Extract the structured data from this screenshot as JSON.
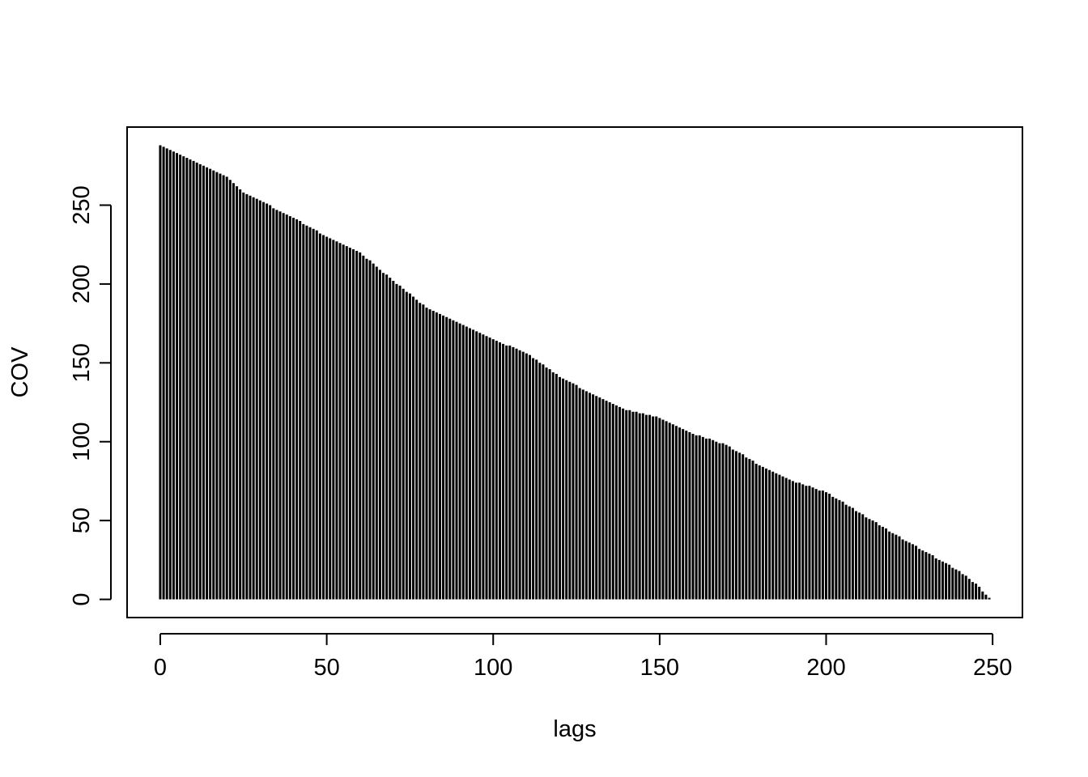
{
  "chart_data": {
    "type": "spike",
    "x_label": "lags",
    "y_label": "COV",
    "color": "#000000",
    "x": [
      0,
      1,
      2,
      3,
      4,
      5,
      6,
      7,
      8,
      9,
      10,
      11,
      12,
      13,
      14,
      15,
      16,
      17,
      18,
      19,
      20,
      21,
      22,
      23,
      24,
      25,
      26,
      27,
      28,
      29,
      30,
      31,
      32,
      33,
      34,
      35,
      36,
      37,
      38,
      39,
      40,
      41,
      42,
      43,
      44,
      45,
      46,
      47,
      48,
      49,
      50,
      51,
      52,
      53,
      54,
      55,
      56,
      57,
      58,
      59,
      60,
      61,
      62,
      63,
      64,
      65,
      66,
      67,
      68,
      69,
      70,
      71,
      72,
      73,
      74,
      75,
      76,
      77,
      78,
      79,
      80,
      81,
      82,
      83,
      84,
      85,
      86,
      87,
      88,
      89,
      90,
      91,
      92,
      93,
      94,
      95,
      96,
      97,
      98,
      99,
      100,
      101,
      102,
      103,
      104,
      105,
      106,
      107,
      108,
      109,
      110,
      111,
      112,
      113,
      114,
      115,
      116,
      117,
      118,
      119,
      120,
      121,
      122,
      123,
      124,
      125,
      126,
      127,
      128,
      129,
      130,
      131,
      132,
      133,
      134,
      135,
      136,
      137,
      138,
      139,
      140,
      141,
      142,
      143,
      144,
      145,
      146,
      147,
      148,
      149,
      150,
      151,
      152,
      153,
      154,
      155,
      156,
      157,
      158,
      159,
      160,
      161,
      162,
      163,
      164,
      165,
      166,
      167,
      168,
      169,
      170,
      171,
      172,
      173,
      174,
      175,
      176,
      177,
      178,
      179,
      180,
      181,
      182,
      183,
      184,
      185,
      186,
      187,
      188,
      189,
      190,
      191,
      192,
      193,
      194,
      195,
      196,
      197,
      198,
      199,
      200,
      201,
      202,
      203,
      204,
      205,
      206,
      207,
      208,
      209,
      210,
      211,
      212,
      213,
      214,
      215,
      216,
      217,
      218,
      219,
      220,
      221,
      222,
      223,
      224,
      225,
      226,
      227,
      228,
      229,
      230,
      231,
      232,
      233,
      234,
      235,
      236,
      237,
      238,
      239,
      240,
      241,
      242,
      243,
      244,
      245,
      246,
      247,
      248,
      249
    ],
    "values": [
      288,
      287,
      286,
      285,
      284,
      283,
      282,
      281,
      280,
      279,
      278,
      277,
      276,
      275,
      274,
      273,
      272,
      271,
      270,
      269,
      268,
      266,
      264,
      262,
      260,
      258,
      257,
      256,
      255,
      254,
      253,
      252,
      251,
      250,
      248,
      247,
      246,
      245,
      244,
      243,
      242,
      241,
      240,
      238,
      237,
      236,
      235,
      234,
      232,
      231,
      230,
      229,
      228,
      227,
      226,
      225,
      224,
      223,
      222,
      221,
      220,
      218,
      216,
      215,
      213,
      211,
      209,
      207,
      206,
      204,
      202,
      200,
      199,
      197,
      195,
      194,
      192,
      190,
      188,
      187,
      185,
      184,
      183,
      182,
      181,
      180,
      179,
      178,
      177,
      176,
      175,
      174,
      173,
      172,
      171,
      170,
      169,
      168,
      167,
      166,
      165,
      164,
      163,
      162,
      161,
      161,
      160,
      159,
      158,
      157,
      156,
      155,
      153,
      152,
      150,
      149,
      147,
      146,
      144,
      143,
      141,
      140,
      139,
      138,
      137,
      136,
      134,
      133,
      132,
      131,
      130,
      129,
      128,
      127,
      126,
      125,
      124,
      123,
      122,
      121,
      120,
      120,
      119,
      119,
      118,
      118,
      117,
      117,
      116,
      116,
      115,
      114,
      113,
      112,
      111,
      110,
      109,
      108,
      107,
      106,
      105,
      104,
      104,
      103,
      102,
      102,
      101,
      100,
      99,
      99,
      98,
      97,
      95,
      94,
      93,
      92,
      90,
      89,
      88,
      86,
      85,
      84,
      83,
      82,
      81,
      80,
      79,
      78,
      77,
      76,
      75,
      74,
      74,
      73,
      72,
      72,
      71,
      70,
      69,
      69,
      68,
      67,
      65,
      64,
      63,
      62,
      60,
      59,
      58,
      56,
      55,
      54,
      52,
      51,
      50,
      49,
      47,
      46,
      45,
      43,
      42,
      41,
      40,
      38,
      37,
      36,
      35,
      34,
      32,
      31,
      30,
      29,
      28,
      26,
      25,
      24,
      23,
      22,
      20,
      19,
      18,
      16,
      15,
      13,
      11,
      10,
      8,
      5,
      3,
      1
    ],
    "xlim": [
      -9.96,
      258.96
    ],
    "ylim": [
      -11.52,
      299.52
    ],
    "xticks": [
      0,
      50,
      100,
      150,
      200,
      250
    ],
    "yticks": [
      0,
      50,
      100,
      150,
      200,
      250
    ]
  }
}
